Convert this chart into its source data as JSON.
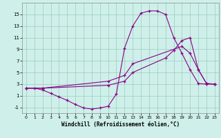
{
  "xlabel": "Windchill (Refroidissement éolien,°C)",
  "background_color": "#cff0ea",
  "line_color": "#880088",
  "xlim": [
    -0.5,
    23.5
  ],
  "ylim": [
    -2,
    17
  ],
  "xticks": [
    0,
    1,
    2,
    3,
    4,
    5,
    6,
    7,
    8,
    9,
    10,
    11,
    12,
    13,
    14,
    15,
    16,
    17,
    18,
    19,
    20,
    21,
    22,
    23
  ],
  "yticks": [
    -1,
    1,
    3,
    5,
    7,
    9,
    11,
    13,
    15
  ],
  "grid_color": "#99ccbb",
  "series1_x": [
    0,
    1,
    2,
    3,
    4,
    5,
    6,
    7,
    8,
    9,
    10,
    11,
    12,
    13,
    14,
    15,
    16,
    17,
    18,
    19,
    20,
    21,
    22,
    23
  ],
  "series1_y": [
    2.3,
    2.3,
    2.0,
    1.4,
    0.8,
    0.2,
    -0.5,
    -1.1,
    -1.3,
    -1.1,
    -0.8,
    1.3,
    9.2,
    13.0,
    15.2,
    15.6,
    15.6,
    15.0,
    11.0,
    8.3,
    5.5,
    3.1,
    3.0,
    3.0
  ],
  "series2_x": [
    0,
    2,
    10,
    12,
    13,
    19,
    20,
    21,
    22,
    23
  ],
  "series2_y": [
    2.3,
    2.3,
    3.5,
    4.5,
    6.5,
    9.5,
    8.3,
    5.5,
    3.1,
    3.0
  ],
  "series3_x": [
    0,
    2,
    10,
    12,
    13,
    17,
    18,
    19,
    20,
    21,
    22,
    23
  ],
  "series3_y": [
    2.3,
    2.3,
    2.8,
    3.5,
    5.0,
    7.5,
    8.8,
    10.5,
    11.0,
    5.5,
    3.1,
    3.0
  ]
}
